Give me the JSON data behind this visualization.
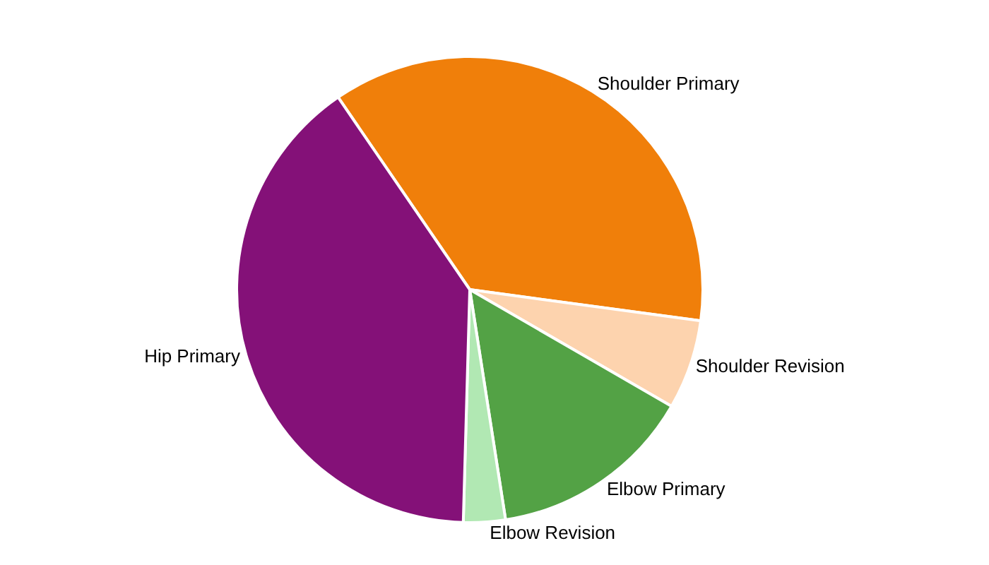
{
  "chart_data": {
    "type": "pie",
    "categories": [
      "Shoulder Primary",
      "Shoulder Revision",
      "Elbow Primary",
      "Elbow Revision",
      "Hip Primary"
    ],
    "values": [
      36.7,
      6.2,
      14.2,
      2.9,
      40.0
    ],
    "colors": [
      "#f07f0a",
      "#fdd3ae",
      "#53a245",
      "#b1e8b3",
      "#841178"
    ],
    "legend": false
  }
}
